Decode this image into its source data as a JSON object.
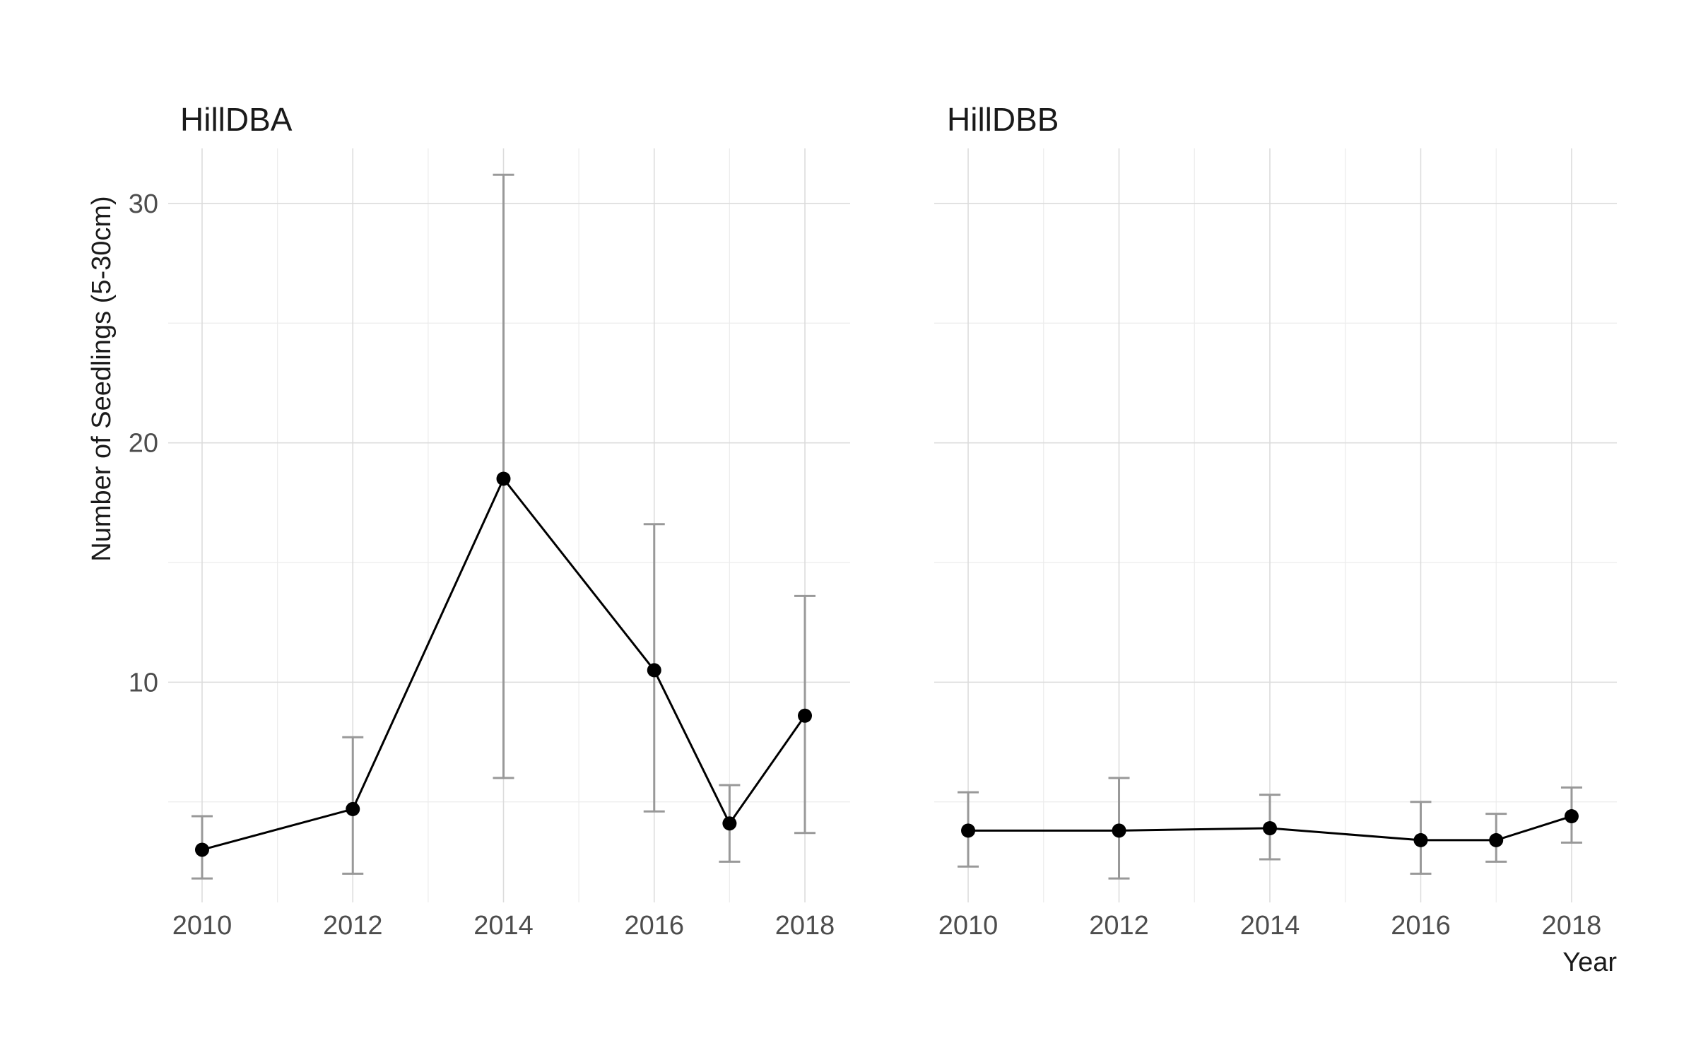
{
  "chart_data": {
    "type": "line",
    "ylabel": "Number of Seedlings (5-30cm)",
    "xlabel": "Year",
    "ylim": [
      0.8,
      32.3
    ],
    "xlim": [
      2009.55,
      2018.6
    ],
    "y_ticks": [
      10,
      20,
      30
    ],
    "y_minor": [
      5,
      15,
      25
    ],
    "x_ticks": [
      2010,
      2012,
      2014,
      2016,
      2018
    ],
    "x_minor_grid": [
      2011,
      2013,
      2015,
      2017
    ],
    "grid": true,
    "panels": [
      {
        "title": "HillDBA",
        "x": [
          2010,
          2012,
          2014,
          2016,
          2017,
          2018
        ],
        "y": [
          3.0,
          4.7,
          18.5,
          10.5,
          4.1,
          8.6
        ],
        "err_low": [
          1.8,
          2.0,
          6.0,
          4.6,
          2.5,
          3.7
        ],
        "err_high": [
          4.4,
          7.7,
          31.2,
          16.6,
          5.7,
          13.6
        ]
      },
      {
        "title": "HillDBB",
        "x": [
          2010,
          2012,
          2014,
          2016,
          2017,
          2018
        ],
        "y": [
          3.8,
          3.8,
          3.9,
          3.4,
          3.4,
          4.4
        ],
        "err_low": [
          2.3,
          1.8,
          2.6,
          2.0,
          2.5,
          3.3
        ],
        "err_high": [
          5.4,
          6.0,
          5.3,
          5.0,
          4.5,
          5.6
        ]
      }
    ]
  }
}
